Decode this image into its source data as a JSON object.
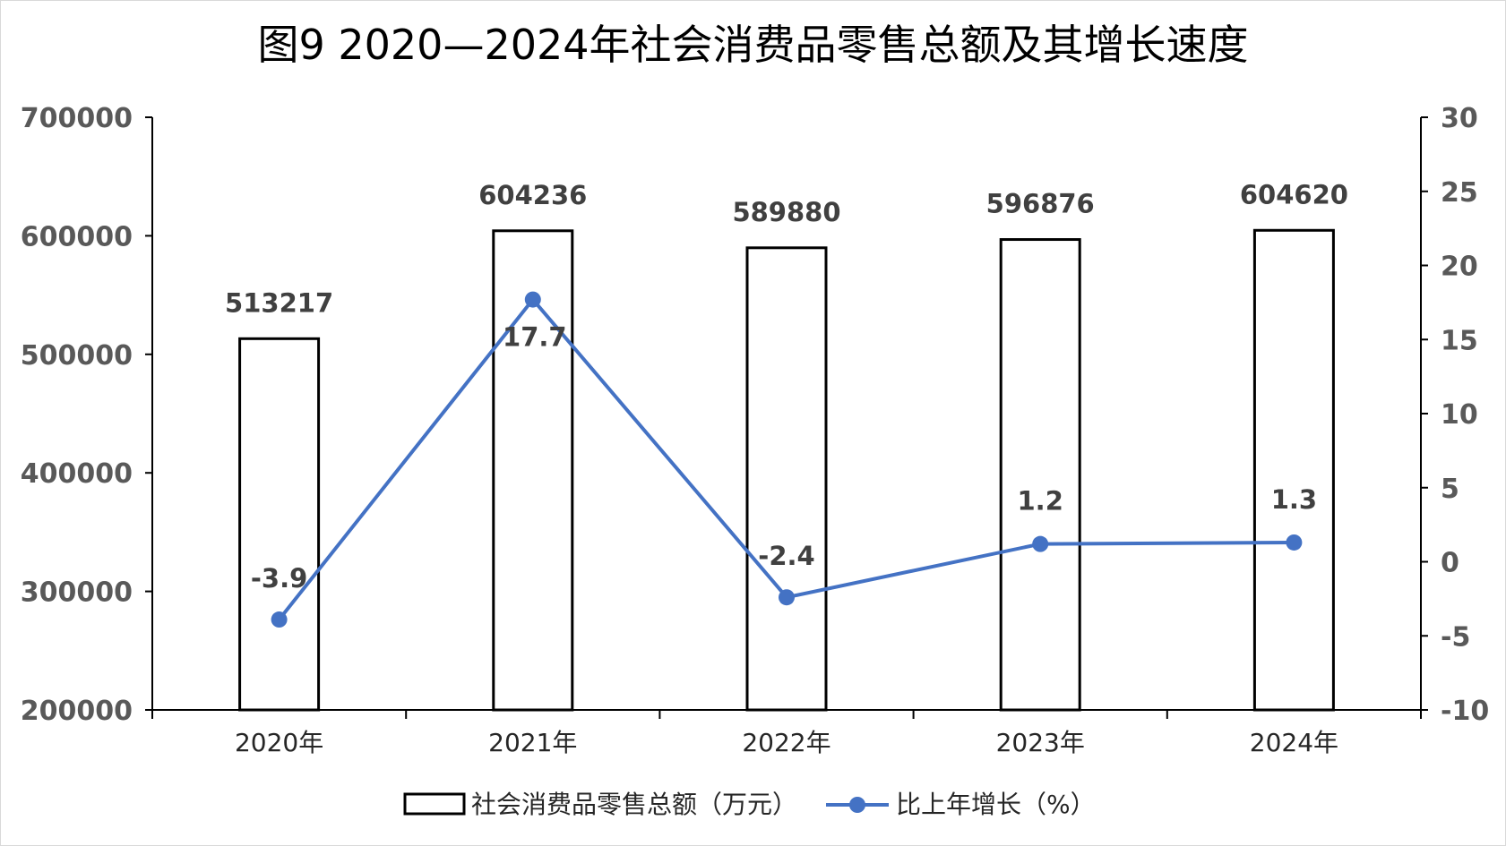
{
  "chart_data": {
    "type": "bar",
    "title": "图9  2020—2024年社会消费品零售总额及其增长速度",
    "categories": [
      "2020年",
      "2021年",
      "2022年",
      "2023年",
      "2024年"
    ],
    "series": [
      {
        "name": "社会消费品零售总额（万元）",
        "type": "bar",
        "axis": "left",
        "values": [
          513217,
          604236,
          589880,
          596876,
          604620
        ],
        "fill": "#ffffff",
        "stroke": "#000000"
      },
      {
        "name": "比上年增长（%）",
        "type": "line",
        "axis": "right",
        "values": [
          -3.9,
          17.7,
          -2.4,
          1.2,
          1.3
        ],
        "color": "#4472c4"
      }
    ],
    "y_left": {
      "min": 200000,
      "max": 700000,
      "step": 100000
    },
    "y_right": {
      "min": -10,
      "max": 30,
      "step": 5
    },
    "grid": false,
    "legend_position": "bottom"
  }
}
